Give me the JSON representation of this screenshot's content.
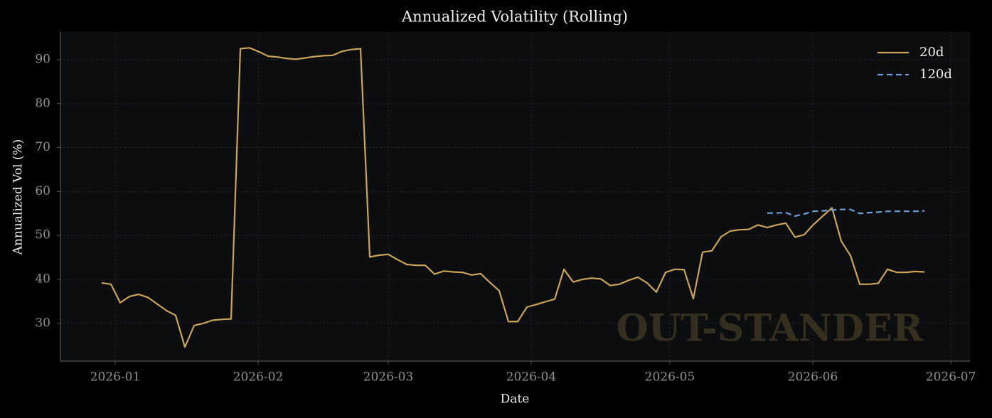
{
  "chart_data": {
    "type": "line",
    "title": "Annualized Volatility (Rolling)",
    "xlabel": "Date",
    "ylabel": "Annualized Vol (%)",
    "watermark": "OUT-STANDER",
    "legend": "upper right",
    "grid": true,
    "xlim": [
      -4.46,
      93.92
    ],
    "xticks": [
      {
        "value": 1.46,
        "label": "2026-01"
      },
      {
        "value": 16.92,
        "label": "2026-02"
      },
      {
        "value": 31.0,
        "label": "2026-03"
      },
      {
        "value": 46.46,
        "label": "2026-04"
      },
      {
        "value": 61.46,
        "label": "2026-05"
      },
      {
        "value": 76.92,
        "label": "2026-06"
      },
      {
        "value": 91.85,
        "label": "2026-07"
      }
    ],
    "ylim": [
      21.4,
      96.3
    ],
    "yticks": [
      30,
      40,
      50,
      60,
      70,
      80,
      90
    ],
    "series": [
      {
        "name": "20d",
        "color": "#c9a35a",
        "linestyle": "solid",
        "values": [
          39.2,
          38.9,
          34.7,
          36.1,
          36.6,
          35.9,
          34.4,
          32.9,
          31.8,
          24.6,
          29.5,
          30.0,
          30.7,
          30.9,
          31.0,
          92.5,
          92.7,
          91.8,
          90.8,
          90.6,
          90.3,
          90.1,
          90.4,
          90.7,
          90.9,
          91.0,
          91.9,
          92.3,
          92.5,
          45.1,
          45.5,
          45.7,
          44.5,
          43.4,
          43.2,
          43.2,
          41.2,
          41.9,
          41.7,
          41.6,
          41.0,
          41.3,
          39.3,
          37.4,
          30.4,
          30.4,
          33.7,
          34.3,
          34.9,
          35.5,
          42.3,
          39.4,
          40.0,
          40.3,
          40.1,
          38.6,
          38.9,
          39.8,
          40.5,
          39.2,
          37.1,
          41.6,
          42.3,
          42.2,
          35.6,
          46.2,
          46.5,
          49.7,
          51.0,
          51.3,
          51.4,
          52.4,
          51.8,
          52.4,
          52.8,
          49.6,
          50.2,
          52.5,
          54.4,
          56.3,
          48.7,
          45.4,
          38.9,
          38.9,
          39.1,
          42.3,
          41.6,
          41.6,
          41.8,
          41.7
        ]
      },
      {
        "name": "120d",
        "color": "#6f9fd8",
        "linestyle": "dashed",
        "values": [
          null,
          null,
          null,
          null,
          null,
          null,
          null,
          null,
          null,
          null,
          null,
          null,
          null,
          null,
          null,
          null,
          null,
          null,
          null,
          null,
          null,
          null,
          null,
          null,
          null,
          null,
          null,
          null,
          null,
          null,
          null,
          null,
          null,
          null,
          null,
          null,
          null,
          null,
          null,
          null,
          null,
          null,
          null,
          null,
          null,
          null,
          null,
          null,
          null,
          null,
          null,
          null,
          null,
          null,
          null,
          null,
          null,
          null,
          null,
          null,
          null,
          null,
          null,
          null,
          null,
          null,
          null,
          null,
          null,
          null,
          null,
          null,
          55.1,
          55.1,
          55.2,
          54.4,
          54.9,
          55.5,
          55.6,
          55.8,
          55.9,
          55.9,
          55.0,
          55.2,
          55.3,
          55.5,
          55.5,
          55.5,
          55.5,
          55.6
        ]
      }
    ]
  }
}
